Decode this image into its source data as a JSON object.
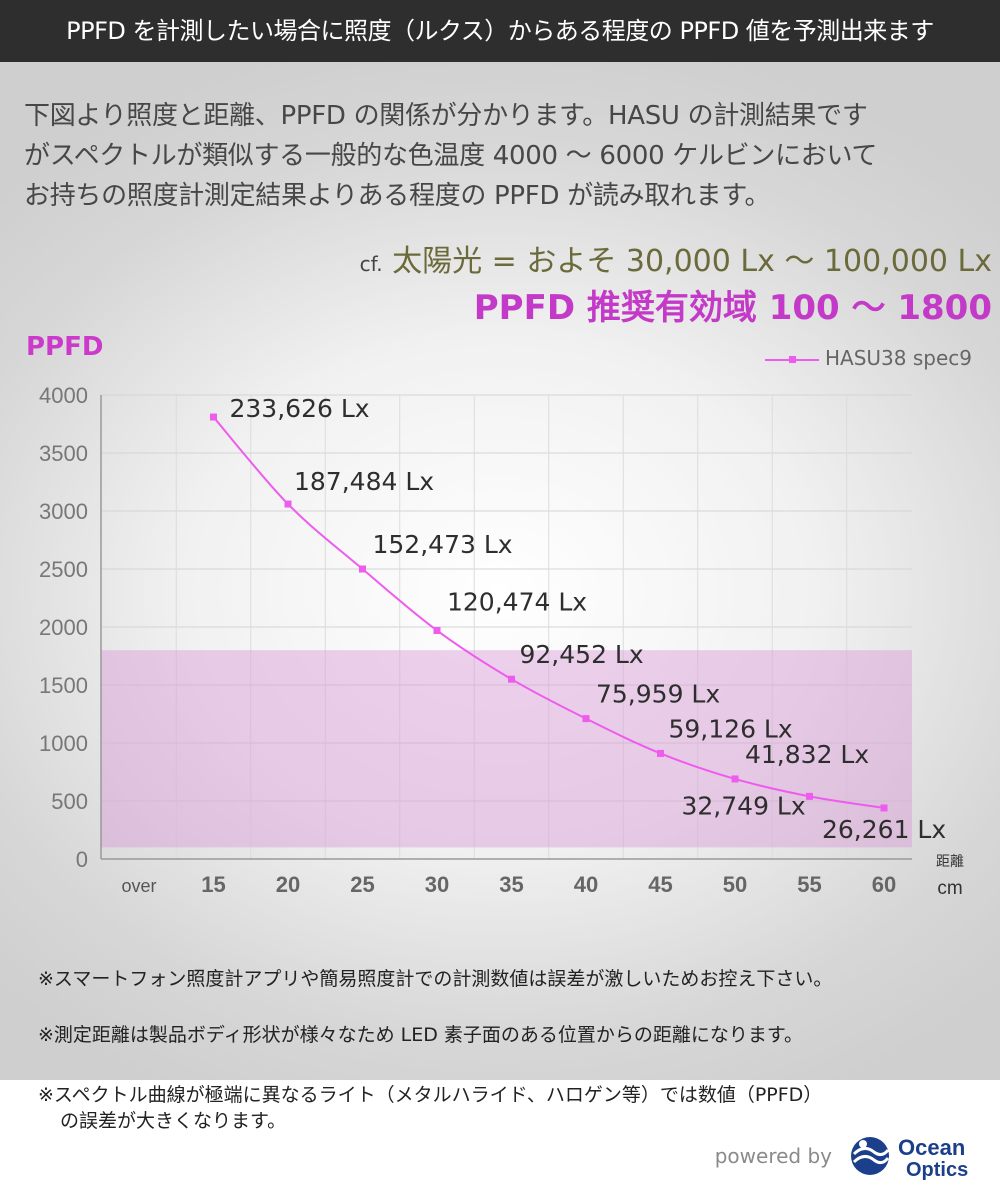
{
  "header": {
    "title": "PPFD を計測したい場合に照度（ルクス）からある程度の PPFD 値を予測出来ます"
  },
  "intro": {
    "lines": [
      "下図より照度と距離、PPFD の関係が分かります。HASU の計測結果です",
      "がスペクトルが類似する一般的な色温度 4000 ～ 6000 ケルビンにおいて",
      "お持ちの照度計測定結果よりある程度の PPFD が読み取れます。"
    ]
  },
  "reference": {
    "prefix": "cf.",
    "text": "太陽光 = およそ 30,000 Lx ～ 100,000 Lx"
  },
  "recommended": {
    "text": "PPFD 推奨有効域 100 ～ 1800"
  },
  "chart_data": {
    "type": "line",
    "ylabel": "PPFD",
    "xlabel": "距離",
    "xunit": "cm",
    "categories": [
      "over",
      "15",
      "20",
      "25",
      "30",
      "35",
      "40",
      "45",
      "50",
      "55",
      "60"
    ],
    "ylim": [
      0,
      4000
    ],
    "yticks": [
      0,
      500,
      1000,
      1500,
      2000,
      2500,
      3000,
      3500,
      4000
    ],
    "grid": true,
    "legend_position": "top-right",
    "recommended_band": [
      100,
      1800
    ],
    "series": [
      {
        "name": "HASU38 spec9",
        "color": "#ee5cee",
        "x": [
          "15",
          "20",
          "25",
          "30",
          "35",
          "40",
          "45",
          "50",
          "55",
          "60"
        ],
        "values": [
          3810,
          3060,
          2500,
          1970,
          1550,
          1210,
          910,
          690,
          540,
          440
        ],
        "labels": [
          "233,626 Lx",
          "187,484 Lx",
          "152,473 Lx",
          "120,474 Lx",
          "92,452 Lx",
          "75,959 Lx",
          "59,126 Lx",
          "41,832 Lx",
          "32,749 Lx",
          "26,261 Lx"
        ]
      }
    ]
  },
  "notes": {
    "note1": "※スマートフォン照度計アプリや簡易照度計での計測数値は誤差が激しいためお控え下さい。",
    "note2": "※測定距離は製品ボディ形状が様々なため LED 素子面のある位置からの距離になります。",
    "note3_line1": "※スペクトル曲線が極端に異なるライト（メタルハライド、ハロゲン等）では数値（PPFD）",
    "note3_line2": "の誤差が大きくなります。"
  },
  "footer": {
    "powered_by": "powered by",
    "logo_word1": "Ocean",
    "logo_word2": "Optics"
  }
}
